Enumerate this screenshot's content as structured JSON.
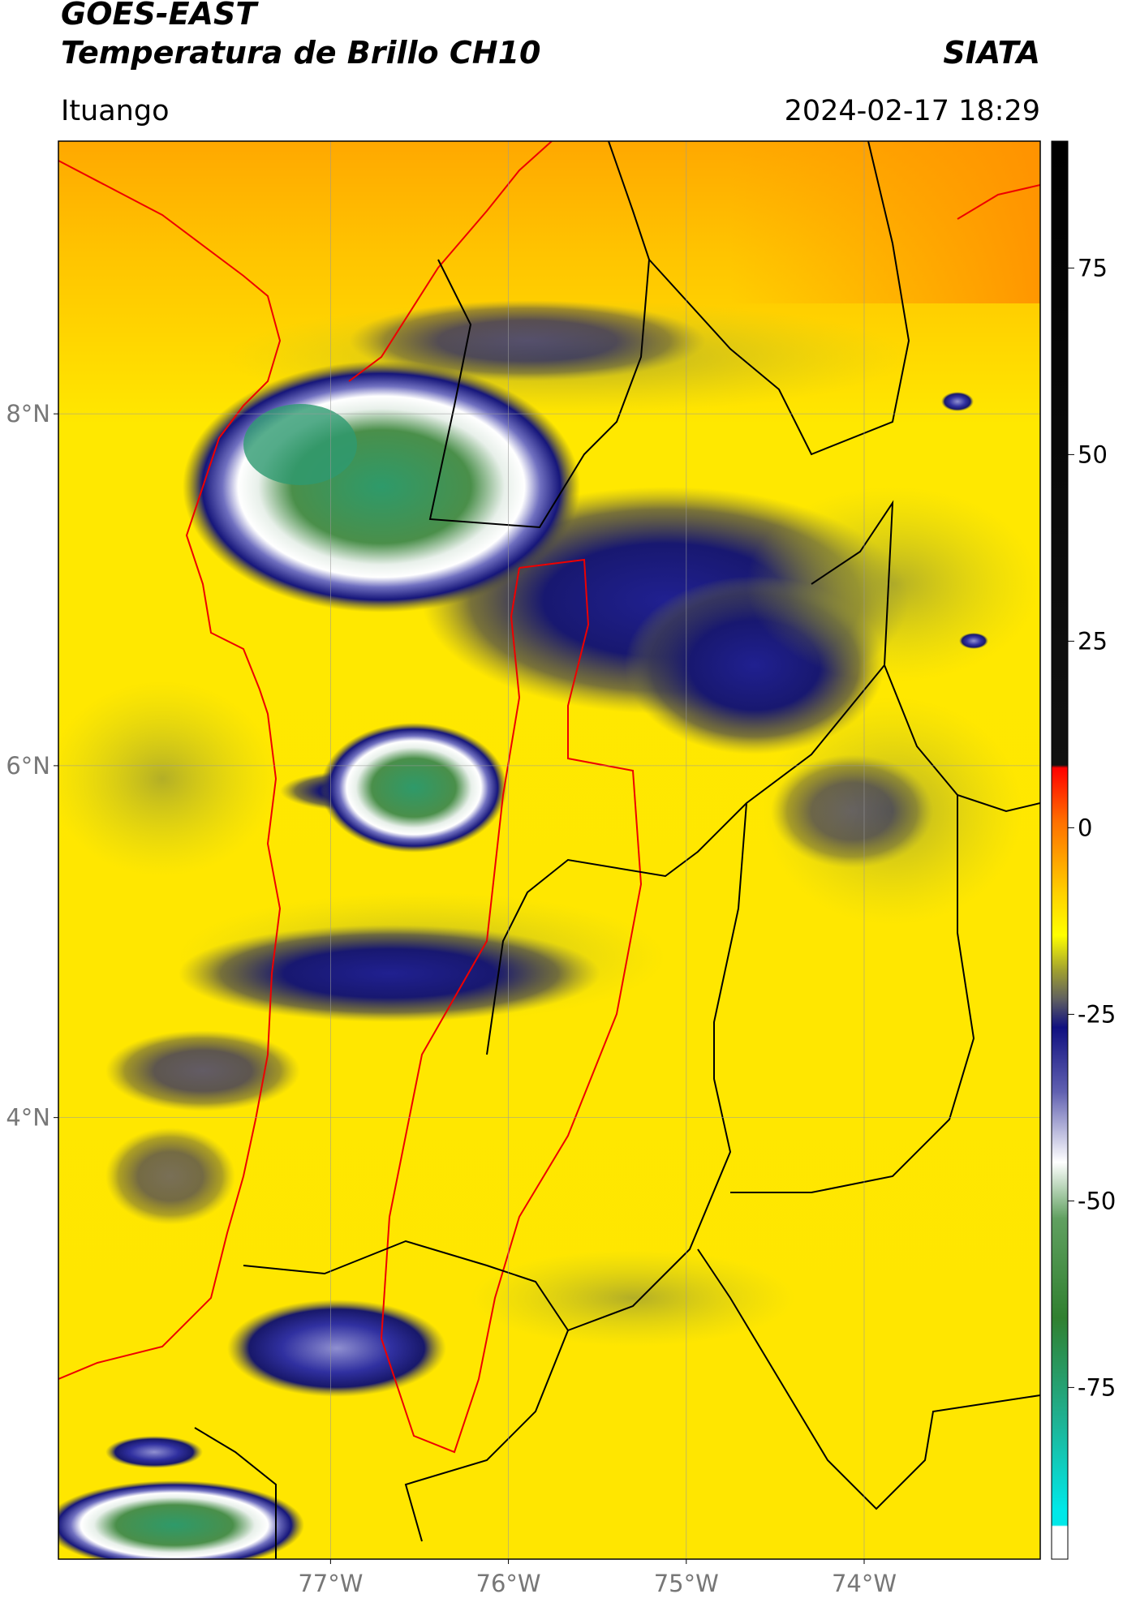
{
  "header": {
    "title": "GOES-EAST",
    "subtitle": "Temperatura de Brillo CH10",
    "agency": "SIATA",
    "location": "Ituango",
    "timestamp": "2024-02-17 18:29"
  },
  "map": {
    "lat_range": [
      1.49,
      9.55
    ],
    "lon_range": [
      -78.53,
      -73.01
    ],
    "lat_ticks": [
      {
        "value": 8,
        "label": "8°N"
      },
      {
        "value": 6,
        "label": "6°N"
      },
      {
        "value": 4,
        "label": "4°N"
      }
    ],
    "lon_ticks": [
      {
        "value": -77,
        "label": "77°W"
      },
      {
        "value": -76,
        "label": "76°W"
      },
      {
        "value": -75,
        "label": "75°W"
      },
      {
        "value": -74,
        "label": "74°W"
      }
    ],
    "grid": true
  },
  "colorbar": {
    "range": [
      -98,
      92
    ],
    "ticks": [
      75,
      50,
      25,
      0,
      -25,
      -50,
      -75
    ]
  }
}
